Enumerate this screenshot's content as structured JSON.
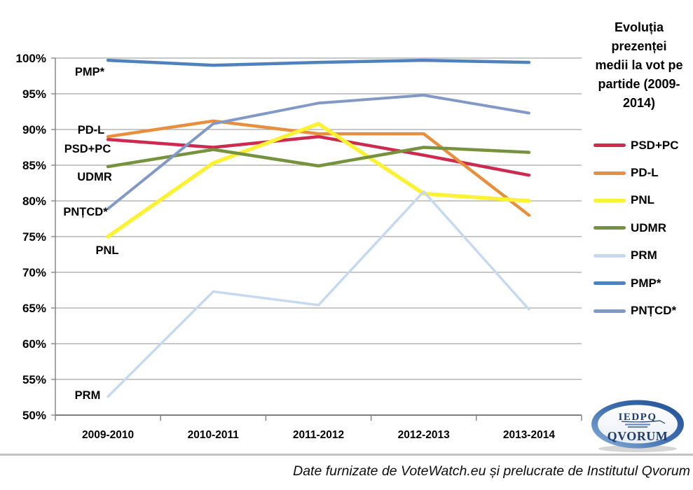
{
  "footer": {
    "credit": "Date furnizate de VoteWatch.eu și prelucrate de Institutul Qvorum"
  },
  "logo": {
    "acronym": "IEDPQ",
    "name": "QVORUM"
  },
  "chart_data": {
    "type": "line",
    "title": "Evoluția prezenței medii la vot pe partide (2009-2014)",
    "categories": [
      "2009-2010",
      "2010-2011",
      "2011-2012",
      "2012-2013",
      "2013-2014"
    ],
    "series": [
      {
        "name": "PSD+PC",
        "color": "#CE2A50",
        "values": [
          88.6,
          87.5,
          89.0,
          86.4,
          83.6
        ]
      },
      {
        "name": "PD-L",
        "color": "#E78F3C",
        "values": [
          89.0,
          91.2,
          89.4,
          89.4,
          78.0
        ]
      },
      {
        "name": "PNL",
        "color": "#FBF235",
        "values": [
          75.0,
          85.3,
          90.8,
          81.0,
          80.0
        ]
      },
      {
        "name": "UDMR",
        "color": "#76923C",
        "values": [
          84.8,
          87.2,
          84.9,
          87.5,
          86.8
        ]
      },
      {
        "name": "PRM",
        "color": "#C6D9EE",
        "values": [
          52.6,
          67.3,
          65.4,
          81.3,
          64.8
        ]
      },
      {
        "name": "PMP*",
        "color": "#4F81BD",
        "values": [
          99.7,
          99.0,
          99.4,
          99.7,
          99.4
        ]
      },
      {
        "name": "PNȚCD*",
        "color": "#8299C6",
        "values": [
          78.9,
          90.8,
          93.7,
          94.8,
          92.3
        ]
      }
    ],
    "ylim": [
      50,
      100
    ],
    "ytick_step": 5,
    "ytick_labels": [
      "100%",
      "95%",
      "90%",
      "85%",
      "80%",
      "75%",
      "70%",
      "65%",
      "60%",
      "55%",
      "50%"
    ],
    "xlabel": "",
    "ylabel": "",
    "grid": true,
    "legend_position": "right",
    "inplot_series_labels": true
  }
}
